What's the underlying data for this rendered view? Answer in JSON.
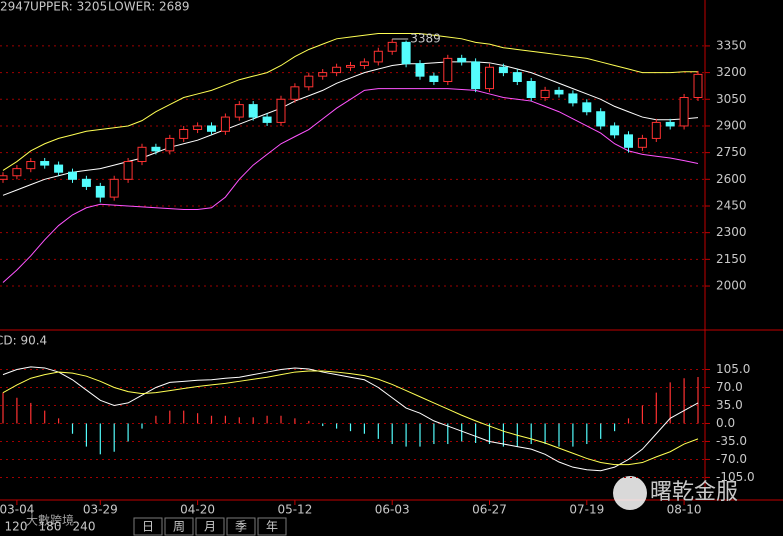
{
  "chart_data": [
    {
      "type": "candlestick",
      "indicator_labels": [
        {
          "text": "2947",
          "color": "#ffffff"
        },
        {
          "text": "UPPER: 3205",
          "color": "#ffff54"
        },
        {
          "text": "LOWER: 2689",
          "color": "#ff54ff"
        }
      ],
      "annotation": {
        "text": "3389",
        "index": 28
      },
      "categories": [
        null,
        "03-04",
        null,
        null,
        null,
        null,
        null,
        "03-29",
        null,
        null,
        null,
        null,
        null,
        null,
        "04-20",
        null,
        null,
        null,
        null,
        null,
        null,
        "05-12",
        null,
        null,
        null,
        null,
        null,
        null,
        "06-03",
        null,
        null,
        null,
        null,
        null,
        null,
        "06-27",
        null,
        null,
        null,
        null,
        null,
        null,
        "07-19",
        null,
        null,
        null,
        null,
        null,
        null,
        "08-10",
        null
      ],
      "open": [
        2600,
        2620,
        2660,
        2700,
        2680,
        2640,
        2600,
        2560,
        2500,
        2600,
        2700,
        2780,
        2760,
        2830,
        2880,
        2900,
        2870,
        2950,
        3020,
        2950,
        2920,
        3050,
        3120,
        3180,
        3200,
        3230,
        3240,
        3260,
        3320,
        3370,
        3250,
        3180,
        3150,
        3280,
        3260,
        3110,
        3230,
        3200,
        3150,
        3060,
        3100,
        3080,
        3030,
        2980,
        2900,
        2850,
        2780,
        2830,
        2920,
        2900,
        3060
      ],
      "high": [
        2640,
        2680,
        2720,
        2720,
        2700,
        2660,
        2620,
        2580,
        2620,
        2720,
        2800,
        2800,
        2850,
        2900,
        2920,
        2920,
        2970,
        3040,
        3040,
        2970,
        3070,
        3140,
        3200,
        3220,
        3250,
        3260,
        3280,
        3340,
        3389,
        3380,
        3270,
        3200,
        3300,
        3300,
        3280,
        3250,
        3250,
        3220,
        3170,
        3120,
        3120,
        3100,
        3050,
        3000,
        2920,
        2870,
        2850,
        2940,
        2940,
        3080,
        3210
      ],
      "low": [
        2580,
        2600,
        2640,
        2660,
        2620,
        2580,
        2540,
        2470,
        2480,
        2580,
        2680,
        2740,
        2740,
        2810,
        2860,
        2850,
        2850,
        2930,
        2930,
        2900,
        2900,
        3030,
        3100,
        3160,
        3180,
        3210,
        3220,
        3240,
        3300,
        3230,
        3160,
        3130,
        3130,
        3240,
        3090,
        3090,
        3180,
        3130,
        3040,
        3040,
        3060,
        3010,
        2960,
        2880,
        2830,
        2750,
        2760,
        2810,
        2880,
        2880,
        3040
      ],
      "close": [
        2620,
        2660,
        2700,
        2680,
        2640,
        2600,
        2560,
        2500,
        2600,
        2700,
        2780,
        2760,
        2830,
        2880,
        2900,
        2870,
        2950,
        3020,
        2950,
        2920,
        3050,
        3120,
        3180,
        3200,
        3230,
        3240,
        3260,
        3320,
        3370,
        3250,
        3180,
        3150,
        3280,
        3260,
        3110,
        3230,
        3200,
        3150,
        3060,
        3100,
        3080,
        3030,
        2980,
        2900,
        2850,
        2780,
        2830,
        2920,
        2900,
        3060,
        3190
      ],
      "up_color": "#ff3232",
      "down_color": "#54fcfc",
      "series": [
        {
          "color": "#ffff54",
          "values": [
            2650,
            2700,
            2760,
            2800,
            2830,
            2850,
            2870,
            2880,
            2890,
            2900,
            2930,
            2980,
            3020,
            3060,
            3080,
            3100,
            3130,
            3160,
            3180,
            3200,
            3240,
            3290,
            3330,
            3360,
            3390,
            3400,
            3410,
            3420,
            3420,
            3420,
            3420,
            3410,
            3400,
            3390,
            3370,
            3360,
            3340,
            3330,
            3320,
            3310,
            3300,
            3290,
            3280,
            3260,
            3240,
            3220,
            3200,
            3200,
            3200,
            3205,
            3205
          ]
        },
        {
          "color": "#ffffff",
          "values": [
            2510,
            2540,
            2570,
            2600,
            2620,
            2640,
            2650,
            2660,
            2680,
            2700,
            2720,
            2750,
            2780,
            2800,
            2820,
            2850,
            2880,
            2910,
            2940,
            2970,
            3000,
            3040,
            3070,
            3100,
            3140,
            3170,
            3200,
            3220,
            3240,
            3250,
            3250,
            3255,
            3260,
            3260,
            3260,
            3255,
            3240,
            3220,
            3200,
            3170,
            3140,
            3110,
            3080,
            3050,
            3010,
            2980,
            2950,
            2935,
            2935,
            2940,
            2947
          ]
        },
        {
          "color": "#ff54ff",
          "values": [
            2020,
            2090,
            2170,
            2260,
            2340,
            2400,
            2440,
            2460,
            2455,
            2450,
            2445,
            2440,
            2435,
            2430,
            2430,
            2440,
            2500,
            2600,
            2680,
            2740,
            2800,
            2840,
            2880,
            2940,
            3000,
            3050,
            3100,
            3110,
            3110,
            3110,
            3110,
            3110,
            3110,
            3105,
            3100,
            3080,
            3060,
            3050,
            3040,
            3010,
            2980,
            2940,
            2900,
            2860,
            2800,
            2760,
            2740,
            2730,
            2720,
            2705,
            2689
          ]
        }
      ],
      "ylim": [
        1764,
        3507
      ],
      "yticks": [
        2000,
        2150,
        2300,
        2450,
        2600,
        2750,
        2900,
        3050,
        3200,
        3350
      ],
      "grid": true
    },
    {
      "type": "macd",
      "indicator_label": "CD: 90.4",
      "hist": [
        60,
        50,
        40,
        25,
        10,
        -20,
        -45,
        -60,
        -55,
        -35,
        -10,
        15,
        25,
        25,
        20,
        15,
        15,
        12,
        12,
        15,
        15,
        10,
        5,
        -5,
        -10,
        -15,
        -20,
        -30,
        -40,
        -45,
        -45,
        -40,
        -40,
        -35,
        -38,
        -40,
        -45,
        -45,
        -40,
        -40,
        -45,
        -45,
        -40,
        -30,
        -15,
        10,
        35,
        60,
        80,
        88,
        90.4
      ],
      "up_color": "#ff3232",
      "down_color": "#54fcfc",
      "series": [
        {
          "color": "#ffffff",
          "values": [
            95,
            105,
            110,
            108,
            100,
            85,
            65,
            45,
            35,
            40,
            55,
            70,
            80,
            82,
            84,
            85,
            88,
            90,
            95,
            100,
            105,
            108,
            106,
            100,
            95,
            90,
            85,
            70,
            50,
            30,
            20,
            5,
            -5,
            -15,
            -25,
            -35,
            -40,
            -45,
            -50,
            -60,
            -75,
            -85,
            -90,
            -92,
            -85,
            -70,
            -50,
            -20,
            10,
            25,
            40
          ]
        },
        {
          "color": "#ffff54",
          "values": [
            60,
            75,
            88,
            95,
            100,
            98,
            92,
            82,
            70,
            62,
            58,
            60,
            64,
            68,
            72,
            75,
            78,
            82,
            86,
            90,
            95,
            100,
            102,
            102,
            100,
            97,
            93,
            86,
            76,
            64,
            52,
            40,
            28,
            16,
            5,
            -5,
            -15,
            -23,
            -30,
            -38,
            -48,
            -58,
            -68,
            -76,
            -80,
            -80,
            -76,
            -65,
            -55,
            -40,
            -30
          ]
        }
      ],
      "ylim": [
        -145,
        176
      ],
      "yticks": [
        {
          "value": 105,
          "label": "105.0"
        },
        {
          "value": 70,
          "label": "70.0"
        },
        {
          "value": 35,
          "label": "35.0"
        },
        {
          "value": 0,
          "label": "0.0"
        },
        {
          "value": -35,
          "label": "-35.0"
        },
        {
          "value": -70,
          "label": "-70.0"
        },
        {
          "value": -105,
          "label": "-105.0"
        }
      ],
      "grid": true
    }
  ],
  "toolbar": {
    "periods": [
      "120",
      "180",
      "240"
    ],
    "tabs": [
      "日",
      "周",
      "月",
      "季",
      "年"
    ]
  },
  "watermark": {
    "left": "大數跨境",
    "right": "曙乾金服"
  }
}
